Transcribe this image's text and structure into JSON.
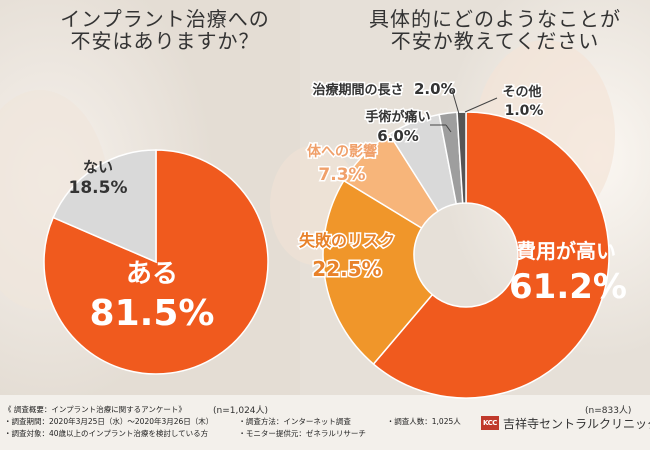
{
  "chart_data": [
    {
      "type": "pie",
      "title": "インプラント治療への\n不安はありますか？",
      "note": "(n=1,024人)",
      "slices": [
        {
          "label": "ある",
          "value": 81.5,
          "value_text": "81.5%",
          "color": "#f05a1e"
        },
        {
          "label": "ない",
          "value": 18.5,
          "value_text": "18.5%",
          "color": "#d9d9d9"
        }
      ]
    },
    {
      "type": "pie",
      "subtype": "donut",
      "title": "具体的にどのようなことが\n不安か教えてください",
      "note": "(n=833人)",
      "slices": [
        {
          "label": "費用が高い",
          "value": 61.2,
          "value_text": "61.2%",
          "color": "#f05a1e"
        },
        {
          "label": "失敗のリスク",
          "value": 22.5,
          "value_text": "22.5%",
          "color": "#f0962a"
        },
        {
          "label": "体への影響",
          "value": 7.3,
          "value_text": "7.3%",
          "color": "#f7b57a"
        },
        {
          "label": "手術が痛い",
          "value": 6.0,
          "value_text": "6.0%",
          "color": "#d9d9d9"
        },
        {
          "label": "治療期間の長さ",
          "value": 2.0,
          "value_text": "2.0%",
          "color": "#9e9e9e"
        },
        {
          "label": "その他",
          "value": 1.0,
          "value_text": "1.0%",
          "color": "#555555"
        }
      ]
    }
  ],
  "survey": {
    "heading": "《 調査概要：インプラント治療に関するアンケート》",
    "period": "・調査期間：2020年3月25日（水）〜2020年3月26日（木）",
    "method": "・調査方法：インターネット調査",
    "count": "・調査人数：1,025人",
    "target": "・調査対象：40歳以上のインプラント治療を検討している方",
    "provider": "・モニター提供元：ゼネラルリサーチ"
  },
  "logo": {
    "mark": "KCC",
    "name": "吉祥寺セントラルクリニック"
  }
}
